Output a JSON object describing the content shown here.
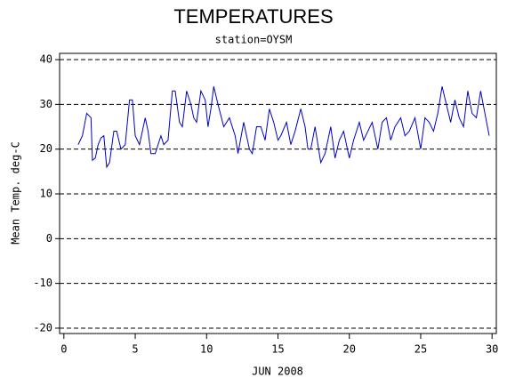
{
  "chart_data": {
    "type": "line",
    "title": "TEMPERATURES",
    "subtitle": "station=OYSM",
    "x_label": "JUN 2008",
    "y_label": "Mean Temp. deg-C",
    "x": [
      1,
      1.3,
      1.6,
      1.9,
      2.0,
      2.2,
      2.4,
      2.6,
      2.8,
      3.0,
      3.2,
      3.5,
      3.7,
      4.0,
      4.3,
      4.6,
      4.8,
      5.0,
      5.3,
      5.7,
      5.9,
      6.1,
      6.4,
      6.8,
      7.0,
      7.3,
      7.6,
      7.8,
      8.1,
      8.3,
      8.6,
      8.9,
      9.1,
      9.3,
      9.6,
      9.9,
      10.1,
      10.3,
      10.5,
      10.8,
      11.2,
      11.6,
      12.0,
      12.2,
      12.6,
      13.0,
      13.2,
      13.5,
      13.8,
      14.1,
      14.4,
      14.7,
      15.0,
      15.2,
      15.6,
      15.9,
      16.2,
      16.6,
      16.9,
      17.1,
      17.3,
      17.6,
      18.0,
      18.3,
      18.7,
      19.0,
      19.3,
      19.6,
      20.0,
      20.3,
      20.7,
      21.0,
      21.3,
      21.6,
      22.0,
      22.3,
      22.6,
      22.9,
      23.2,
      23.6,
      23.9,
      24.2,
      24.6,
      25.0,
      25.3,
      25.6,
      25.9,
      26.2,
      26.5,
      26.8,
      27.1,
      27.4,
      27.7,
      28.0,
      28.3,
      28.6,
      28.9,
      29.2,
      29.5,
      29.8
    ],
    "series": [
      {
        "name": "Mean Temp",
        "color": "#0000cc",
        "values": [
          21,
          23,
          28,
          27,
          17.5,
          18,
          21,
          22.5,
          23,
          16,
          17,
          24,
          24,
          20,
          21,
          31,
          31,
          23,
          21,
          27,
          24,
          19,
          19,
          23,
          21,
          22,
          33,
          33,
          26,
          25,
          33,
          30,
          27,
          26,
          33,
          31,
          25,
          29,
          34,
          30,
          25,
          27,
          23,
          19,
          26,
          20,
          19,
          25,
          25,
          22,
          29,
          26,
          22,
          23,
          26,
          21,
          24,
          29,
          25,
          20,
          20,
          25,
          17,
          19,
          25,
          18,
          22,
          24,
          18,
          22,
          26,
          22,
          24,
          26,
          20,
          26,
          27,
          22,
          25,
          27,
          23,
          24,
          27,
          20,
          27,
          26,
          24,
          28,
          34,
          30,
          26,
          31,
          27,
          25,
          33,
          28,
          27,
          33,
          28,
          23
        ]
      }
    ],
    "xlim": [
      -0.3,
      30.3
    ],
    "ylim": [
      -21.2,
      41.4
    ],
    "xticks": [
      0,
      5,
      10,
      15,
      20,
      25,
      30
    ],
    "yticks": [
      -20,
      -10,
      0,
      10,
      20,
      30,
      40
    ],
    "grid": true
  }
}
